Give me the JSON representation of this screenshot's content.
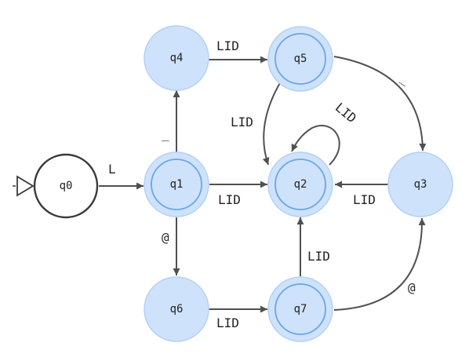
{
  "diagram": {
    "type": "finite-automaton",
    "start_state": "q0",
    "states": {
      "q0": {
        "label": "q0",
        "accepting": false
      },
      "q1": {
        "label": "q1",
        "accepting": true
      },
      "q2": {
        "label": "q2",
        "accepting": true
      },
      "q3": {
        "label": "q3",
        "accepting": false
      },
      "q4": {
        "label": "q4",
        "accepting": false
      },
      "q5": {
        "label": "q5",
        "accepting": true
      },
      "q6": {
        "label": "q6",
        "accepting": false
      },
      "q7": {
        "label": "q7",
        "accepting": true
      }
    },
    "transitions": [
      {
        "from": "q0",
        "to": "q1",
        "label": "L"
      },
      {
        "from": "q1",
        "to": "q4",
        "label": "_"
      },
      {
        "from": "q1",
        "to": "q2",
        "label": "LID"
      },
      {
        "from": "q1",
        "to": "q6",
        "label": "@"
      },
      {
        "from": "q4",
        "to": "q5",
        "label": "LID"
      },
      {
        "from": "q5",
        "to": "q2",
        "label": "LID"
      },
      {
        "from": "q5",
        "to": "q3",
        "label": "_"
      },
      {
        "from": "q2",
        "to": "q2",
        "label": "LID"
      },
      {
        "from": "q3",
        "to": "q2",
        "label": "LID"
      },
      {
        "from": "q6",
        "to": "q7",
        "label": "LID"
      },
      {
        "from": "q7",
        "to": "q2",
        "label": "LID"
      },
      {
        "from": "q7",
        "to": "q3",
        "label": "@"
      }
    ]
  }
}
